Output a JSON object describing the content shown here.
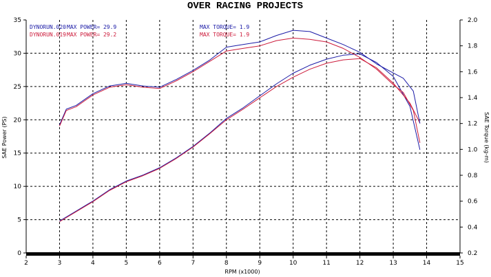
{
  "chart_data": {
    "type": "line",
    "title": "OVER RACING PROJECTS",
    "xlabel": "RPM (x1000)",
    "ylabel": "SAE Power (PS)",
    "y2label": "SAE Torque (kg-m)",
    "xlim": [
      2,
      15
    ],
    "ylim": [
      0,
      35
    ],
    "y2lim": [
      0.2,
      2.0
    ],
    "x_ticks": [
      "2",
      "3",
      "4",
      "5",
      "6",
      "7",
      "8",
      "9",
      "10",
      "11",
      "12",
      "13",
      "14",
      "15"
    ],
    "y_ticks": [
      "0",
      "5",
      "10",
      "15",
      "20",
      "25",
      "30",
      "35"
    ],
    "y2_ticks": [
      "0.2",
      "0.4",
      "0.6",
      "0.8",
      "1.0",
      "1.2",
      "1.4",
      "1.6",
      "1.8",
      "2.0"
    ],
    "grid": true,
    "legend": [
      {
        "run": "DYNORUN.020",
        "power_label": "MAX POWER= 29.9",
        "torque_label": "MAX TORQUE= 1.9",
        "color": "#1a1aa6"
      },
      {
        "run": "DYNORUN.019",
        "power_label": "MAX POWER= 29.2",
        "torque_label": "MAX TORQUE= 1.9",
        "color": "#cc1a3a"
      }
    ],
    "series": [
      {
        "run": "DYNORUN.020",
        "quantity": "power",
        "axis": "left",
        "color": "#1a1aa6",
        "x": [
          3.0,
          3.5,
          4.0,
          4.5,
          5.0,
          5.5,
          6.0,
          6.5,
          7.0,
          7.5,
          8.0,
          8.5,
          9.0,
          9.5,
          10.0,
          10.5,
          11.0,
          11.5,
          12.0,
          12.5,
          13.0,
          13.5,
          13.8
        ],
        "y": [
          4.8,
          6.3,
          7.8,
          9.5,
          10.8,
          11.7,
          12.8,
          14.3,
          16.0,
          18.0,
          20.2,
          21.8,
          23.6,
          25.4,
          27.0,
          28.2,
          29.1,
          29.7,
          29.9,
          28.6,
          26.5,
          22.0,
          15.5
        ]
      },
      {
        "run": "DYNORUN.019",
        "quantity": "power",
        "axis": "left",
        "color": "#cc1a3a",
        "x": [
          3.0,
          3.5,
          4.0,
          4.5,
          5.0,
          5.5,
          6.0,
          6.5,
          7.0,
          7.5,
          8.0,
          8.5,
          9.0,
          9.5,
          10.0,
          10.5,
          11.0,
          11.5,
          12.0,
          12.5,
          13.0,
          13.5,
          13.8
        ],
        "y": [
          4.7,
          6.2,
          7.7,
          9.4,
          10.7,
          11.6,
          12.7,
          14.2,
          15.9,
          17.9,
          20.0,
          21.6,
          23.3,
          25.0,
          26.4,
          27.6,
          28.5,
          29.0,
          29.2,
          27.8,
          25.5,
          22.5,
          19.5
        ]
      },
      {
        "run": "DYNORUN.020",
        "quantity": "torque",
        "axis": "right",
        "color": "#1a1aa6",
        "x": [
          3.0,
          3.2,
          3.5,
          4.0,
          4.5,
          5.0,
          5.5,
          6.0,
          6.5,
          7.0,
          7.5,
          8.0,
          8.5,
          9.0,
          9.5,
          10.0,
          10.5,
          11.0,
          11.5,
          12.0,
          12.5,
          13.0,
          13.3,
          13.6,
          13.8
        ],
        "y": [
          1.19,
          1.31,
          1.34,
          1.43,
          1.49,
          1.51,
          1.49,
          1.48,
          1.54,
          1.61,
          1.69,
          1.79,
          1.81,
          1.83,
          1.88,
          1.92,
          1.91,
          1.86,
          1.81,
          1.75,
          1.66,
          1.59,
          1.55,
          1.45,
          1.2
        ]
      },
      {
        "run": "DYNORUN.019",
        "quantity": "torque",
        "axis": "right",
        "color": "#cc1a3a",
        "x": [
          3.0,
          3.2,
          3.5,
          4.0,
          4.5,
          5.0,
          5.5,
          6.0,
          6.5,
          7.0,
          7.5,
          8.0,
          8.5,
          9.0,
          9.5,
          10.0,
          10.5,
          11.0,
          11.5,
          12.0,
          12.5,
          13.0,
          13.3,
          13.6,
          13.8
        ],
        "y": [
          1.18,
          1.3,
          1.33,
          1.42,
          1.48,
          1.5,
          1.48,
          1.47,
          1.53,
          1.6,
          1.68,
          1.76,
          1.78,
          1.8,
          1.84,
          1.86,
          1.85,
          1.83,
          1.78,
          1.71,
          1.62,
          1.5,
          1.44,
          1.3,
          1.05
        ]
      }
    ]
  }
}
